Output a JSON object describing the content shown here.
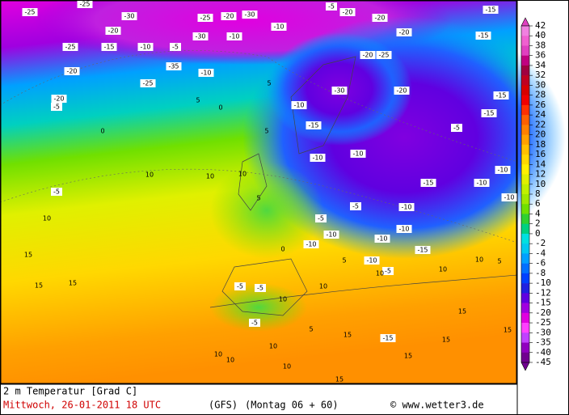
{
  "map": {
    "labels": [
      -25,
      -25,
      -30,
      -20,
      -25,
      -15,
      -10,
      -5,
      -25,
      -20,
      -30,
      -30,
      -10,
      -10,
      -5,
      -20,
      -20,
      -20,
      -15,
      -15,
      -20,
      -25,
      -35,
      -10,
      -25,
      -20,
      -20,
      -5,
      0,
      5,
      0,
      5,
      5,
      -10,
      -15,
      -30,
      -20,
      -15,
      -15,
      -10,
      -10,
      -5,
      10,
      10,
      10,
      -5,
      5,
      -5,
      -10,
      -15,
      -10,
      -10,
      -10,
      10,
      15,
      15,
      15,
      -5,
      -10,
      -10,
      -10,
      -15,
      0,
      -10,
      5,
      -10,
      -5,
      10,
      10,
      5,
      -5,
      -5,
      10,
      10,
      10,
      15,
      15,
      -5,
      5,
      10,
      15,
      -15,
      15,
      15,
      10,
      15,
      10,
      10
    ]
  },
  "legend": {
    "levels": [
      42,
      40,
      38,
      36,
      34,
      32,
      30,
      28,
      26,
      24,
      22,
      20,
      18,
      16,
      14,
      12,
      10,
      8,
      6,
      4,
      2,
      0,
      -2,
      -4,
      -6,
      -8,
      -10,
      -12,
      -15,
      -20,
      -25,
      -30,
      -35,
      -40,
      -45
    ],
    "colors": [
      "#f080e0",
      "#f060d0",
      "#e040c0",
      "#c00080",
      "#a00040",
      "#c00020",
      "#d80000",
      "#f00000",
      "#ff3000",
      "#ff6000",
      "#ff8000",
      "#ffa000",
      "#ffc000",
      "#ffd800",
      "#fff000",
      "#e0f000",
      "#c0f000",
      "#a0e800",
      "#70e000",
      "#30d030",
      "#00d080",
      "#00e0e0",
      "#00c8f0",
      "#00a0ff",
      "#0070ff",
      "#0040ff",
      "#2020e0",
      "#6000e0",
      "#a000e0",
      "#e000e0",
      "#ff40ff",
      "#c040ff",
      "#9000c0",
      "#700090"
    ]
  },
  "footer": {
    "variable": "2 m Temperatur [Grad C]",
    "date": "Mittwoch, 26-01-2011  18 UTC",
    "model": "(GFS)",
    "run": "(Montag 06 + 60)",
    "source": "© www.wetter3.de"
  }
}
